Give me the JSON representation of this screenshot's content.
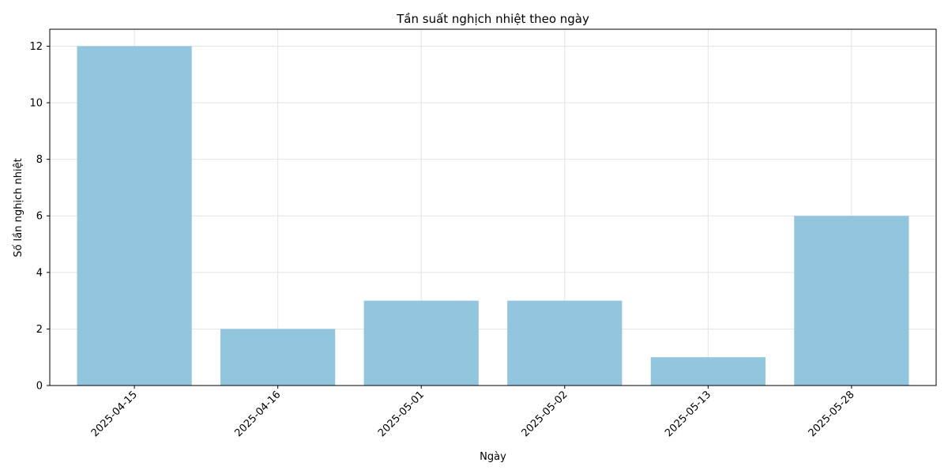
{
  "chart_data": {
    "type": "bar",
    "title": "Tần suất nghịch nhiệt theo ngày",
    "xlabel": "Ngày",
    "ylabel": "Số lần nghịch nhiệt",
    "categories": [
      "2025-04-15",
      "2025-04-16",
      "2025-05-01",
      "2025-05-02",
      "2025-05-13",
      "2025-05-28"
    ],
    "values": [
      12,
      2,
      3,
      3,
      1,
      6
    ],
    "ylim": [
      0,
      12.6
    ],
    "yticks": [
      "0",
      "2",
      "4",
      "6",
      "8",
      "10",
      "12"
    ],
    "bar_color": "#92c5de",
    "grid": true,
    "legend": "none"
  }
}
